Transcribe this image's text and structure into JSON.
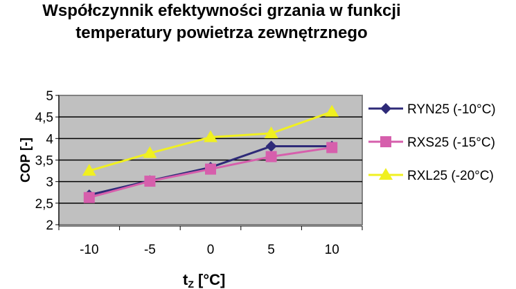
{
  "chart_data": {
    "type": "line",
    "title_line1": "Współczynnik efektywności grzania w funkcji",
    "title_line2": "temperatury powietrza zewnętrznego",
    "xlabel_main": "t",
    "xlabel_sub": "Z",
    "xlabel_rest": " [°C]",
    "ylabel": "COP [-]",
    "categories": [
      "-10",
      "-5",
      "0",
      "5",
      "10"
    ],
    "ylim": [
      2,
      5
    ],
    "yticks": [
      "2",
      "2,5",
      "3",
      "3,5",
      "4",
      "4,5",
      "5"
    ],
    "grid": true,
    "legend_placement": "right",
    "plot_background": "#c0c0c0",
    "series": [
      {
        "name": "RYN25 (-10°C)",
        "values": [
          2.69,
          3.02,
          3.33,
          3.82,
          3.82
        ],
        "color": "#2e2a78",
        "marker": "diamond"
      },
      {
        "name": "RXS25 (-15°C)",
        "values": [
          2.63,
          3.01,
          3.29,
          3.58,
          3.79
        ],
        "color": "#d65fac",
        "marker": "square"
      },
      {
        "name": "RXL25 (-20°C)",
        "values": [
          3.25,
          3.66,
          4.03,
          4.12,
          4.62
        ],
        "color": "#f0f020",
        "marker": "triangle"
      }
    ]
  }
}
